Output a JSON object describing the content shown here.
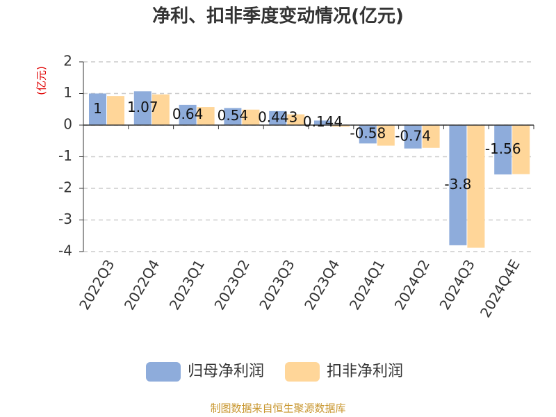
{
  "chart_data": {
    "type": "bar",
    "title": "净利、扣非季度变动情况(亿元)",
    "y_label": "(亿元)",
    "categories": [
      "2022Q3",
      "2022Q4",
      "2023Q1",
      "2023Q2",
      "2023Q3",
      "2023Q4",
      "2024Q1",
      "2024Q2",
      "2024Q3",
      "2024Q4E"
    ],
    "series": [
      {
        "name": "归母净利润",
        "color": "#8eacdb",
        "values": [
          1,
          1.07,
          0.64,
          0.54,
          0.443,
          0.144,
          -0.58,
          -0.74,
          -3.8,
          -1.56
        ],
        "show_labels": true
      },
      {
        "name": "扣非净利润",
        "color": "#ffd699",
        "values": [
          0.92,
          0.97,
          0.57,
          0.49,
          0.34,
          -0.05,
          -0.65,
          -0.72,
          -3.88,
          -1.55
        ],
        "show_labels": false
      }
    ],
    "ylim": [
      -4,
      2
    ],
    "yticks": [
      -4,
      -3,
      -2,
      -1,
      0,
      1,
      2
    ],
    "grid": true,
    "source": "制图数据来自恒生聚源数据库"
  }
}
